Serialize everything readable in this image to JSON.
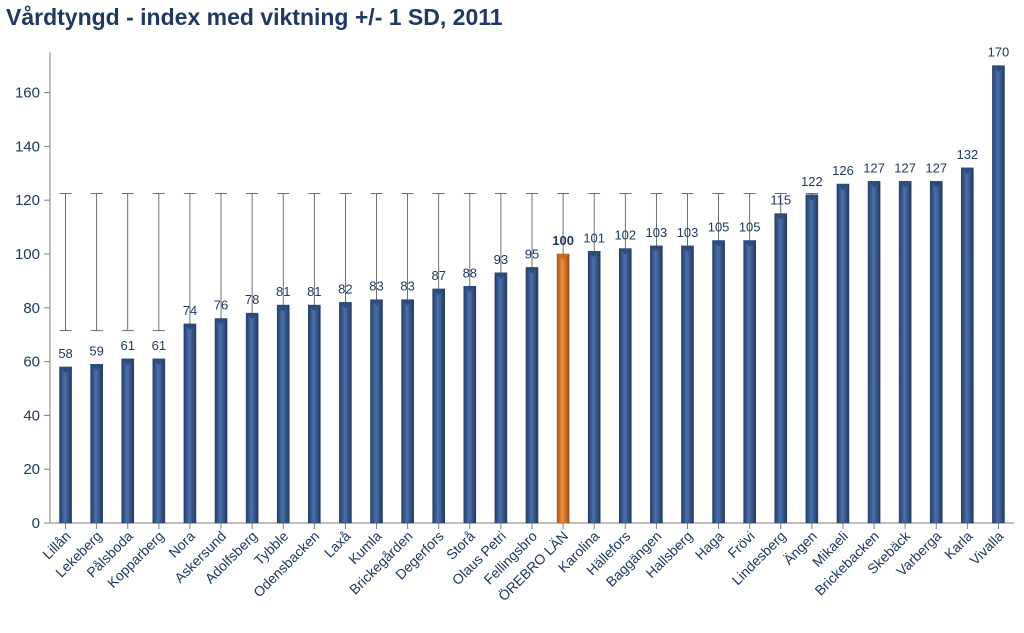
{
  "chart_data": {
    "type": "bar",
    "title": "Vårdtyngd - index med viktning +/- 1 SD, 2011",
    "xlabel": "",
    "ylabel": "",
    "ylim": [
      0,
      175
    ],
    "yticks": [
      0,
      20,
      40,
      60,
      80,
      100,
      120,
      140,
      160
    ],
    "categories": [
      "Lillån",
      "Lekeberg",
      "Pålsboda",
      "Kopparberg",
      "Nora",
      "Askersund",
      "Adolfsberg",
      "Tybble",
      "Odensbacken",
      "Laxå",
      "Kumla",
      "Brickegården",
      "Degerfors",
      "Storå",
      "Olaus Petri",
      "Fellingsbro",
      "ÖREBRO LÄN",
      "Karolina",
      "Hällefors",
      "Baggängen",
      "Hallsberg",
      "Haga",
      "Frövi",
      "Lindesberg",
      "Ängen",
      "Mikaeli",
      "Brickebacken",
      "Skebäck",
      "Varberga",
      "Karla",
      "Vivalla"
    ],
    "values": [
      58,
      59,
      61,
      61,
      74,
      76,
      78,
      81,
      81,
      82,
      83,
      83,
      87,
      88,
      93,
      95,
      100,
      101,
      102,
      103,
      103,
      105,
      105,
      115,
      122,
      126,
      127,
      127,
      127,
      132,
      170
    ],
    "value_labels": [
      "58",
      "59",
      "61",
      "61",
      "74",
      "76",
      "78",
      "81",
      "81",
      "82",
      "83",
      "83",
      "87",
      "88",
      "93",
      "95",
      "100",
      "101",
      "102",
      "103",
      "103",
      "105",
      "105",
      "115",
      "122",
      "126",
      "127",
      "127",
      "127",
      "132",
      "170"
    ],
    "error_band": {
      "lower": 71.5,
      "upper": 122.5
    },
    "highlight_category": "ÖREBRO LÄN",
    "colors": {
      "bar": "#3a5f97",
      "bar_dark": "#243f6a",
      "highlight": "#e07b22",
      "highlight_dark": "#a8541a",
      "text": "#1f3864",
      "axis": "#7f7f7f"
    },
    "grid": false,
    "legend": "none"
  }
}
